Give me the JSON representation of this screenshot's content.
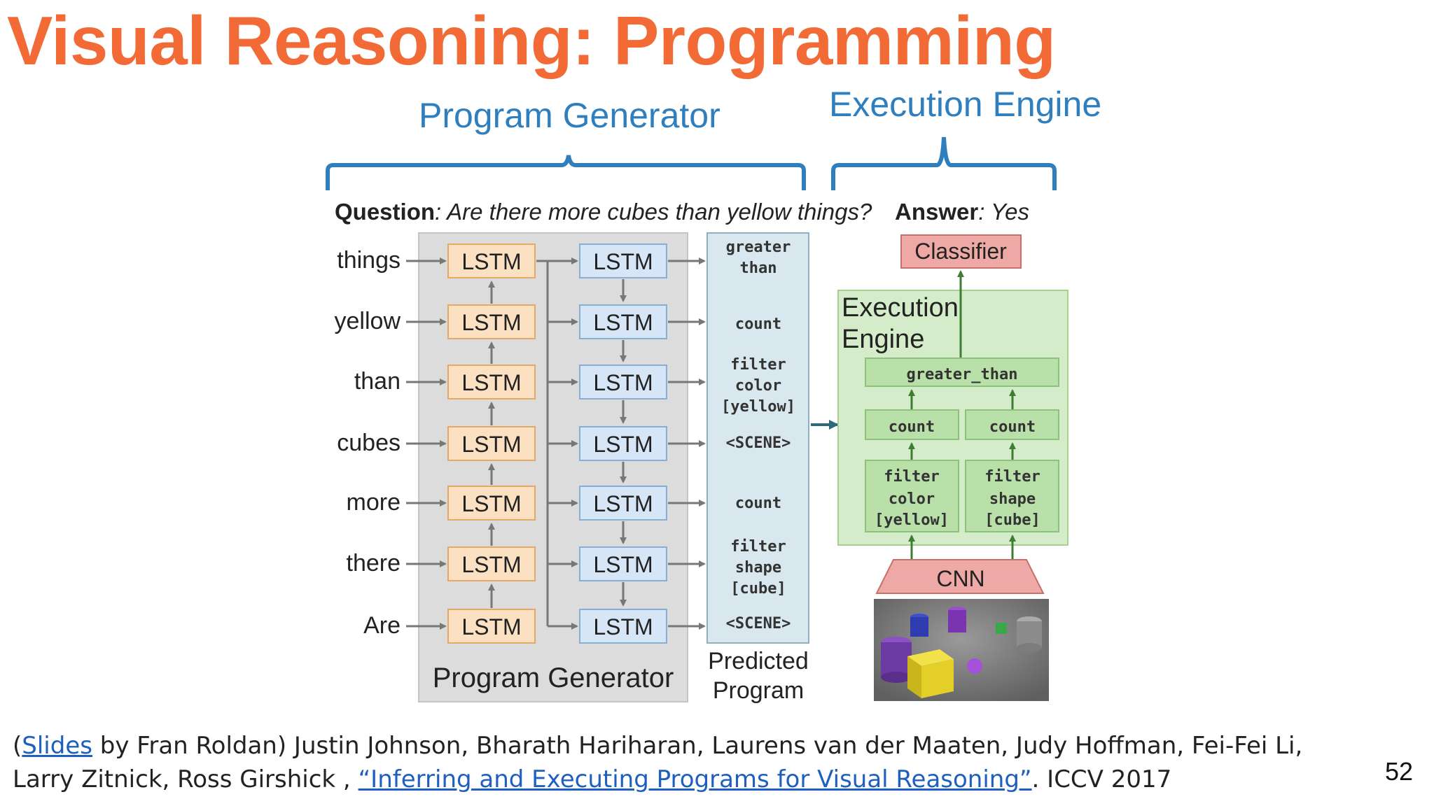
{
  "title": "Visual Reasoning: Programming",
  "brace_labels": {
    "program_generator": "Program Generator",
    "execution_engine": "Execution Engine"
  },
  "question_prefix": "Question",
  "question_text": ": Are there more cubes than yellow things?",
  "answer_prefix": "Answer",
  "answer_text": ": Yes",
  "input_words": [
    "things",
    "yellow",
    "than",
    "cubes",
    "more",
    "there",
    "Are"
  ],
  "lstm_label": "LSTM",
  "program_tokens": [
    [
      "greater",
      "than"
    ],
    [
      "count"
    ],
    [
      "filter",
      "color",
      "[yellow]"
    ],
    [
      "<SCENE>"
    ],
    [
      "count"
    ],
    [
      "filter",
      "shape",
      "[cube]"
    ],
    [
      "<SCENE>"
    ]
  ],
  "program_generator_label": "Program Generator",
  "predicted_program_label": [
    "Predicted",
    "Program"
  ],
  "classifier_label": "Classifier",
  "execution_engine_label": [
    "Execution",
    "Engine"
  ],
  "module_greater_than": "greater_than",
  "module_count": "count",
  "module_filter_color": [
    "filter",
    "color",
    "[yellow]"
  ],
  "module_filter_shape": [
    "filter",
    "shape",
    "[cube]"
  ],
  "cnn_label": "CNN",
  "colors": {
    "title": "#f26b36",
    "brace": "#2f7fbf",
    "lstm_encoder_fill": "#fbe0c2",
    "lstm_decoder_fill": "#d6e6f7",
    "program_fill": "#d8e8ee",
    "engine_fill": "#d5ecca",
    "classifier_fill": "#eea9a6"
  },
  "caption": {
    "open_paren": "(",
    "slides_link": "Slides",
    "text1": " by Fran Roldan) Justin Johnson, Bharath Hariharan, Laurens van der Maaten, Judy Hoffman, Fei-Fei Li, Larry Zitnick, Ross Girshick , ",
    "paper_link": "“Inferring and Executing Programs for Visual Reasoning”",
    "text2": ". ICCV 2017"
  },
  "page_number": "52"
}
